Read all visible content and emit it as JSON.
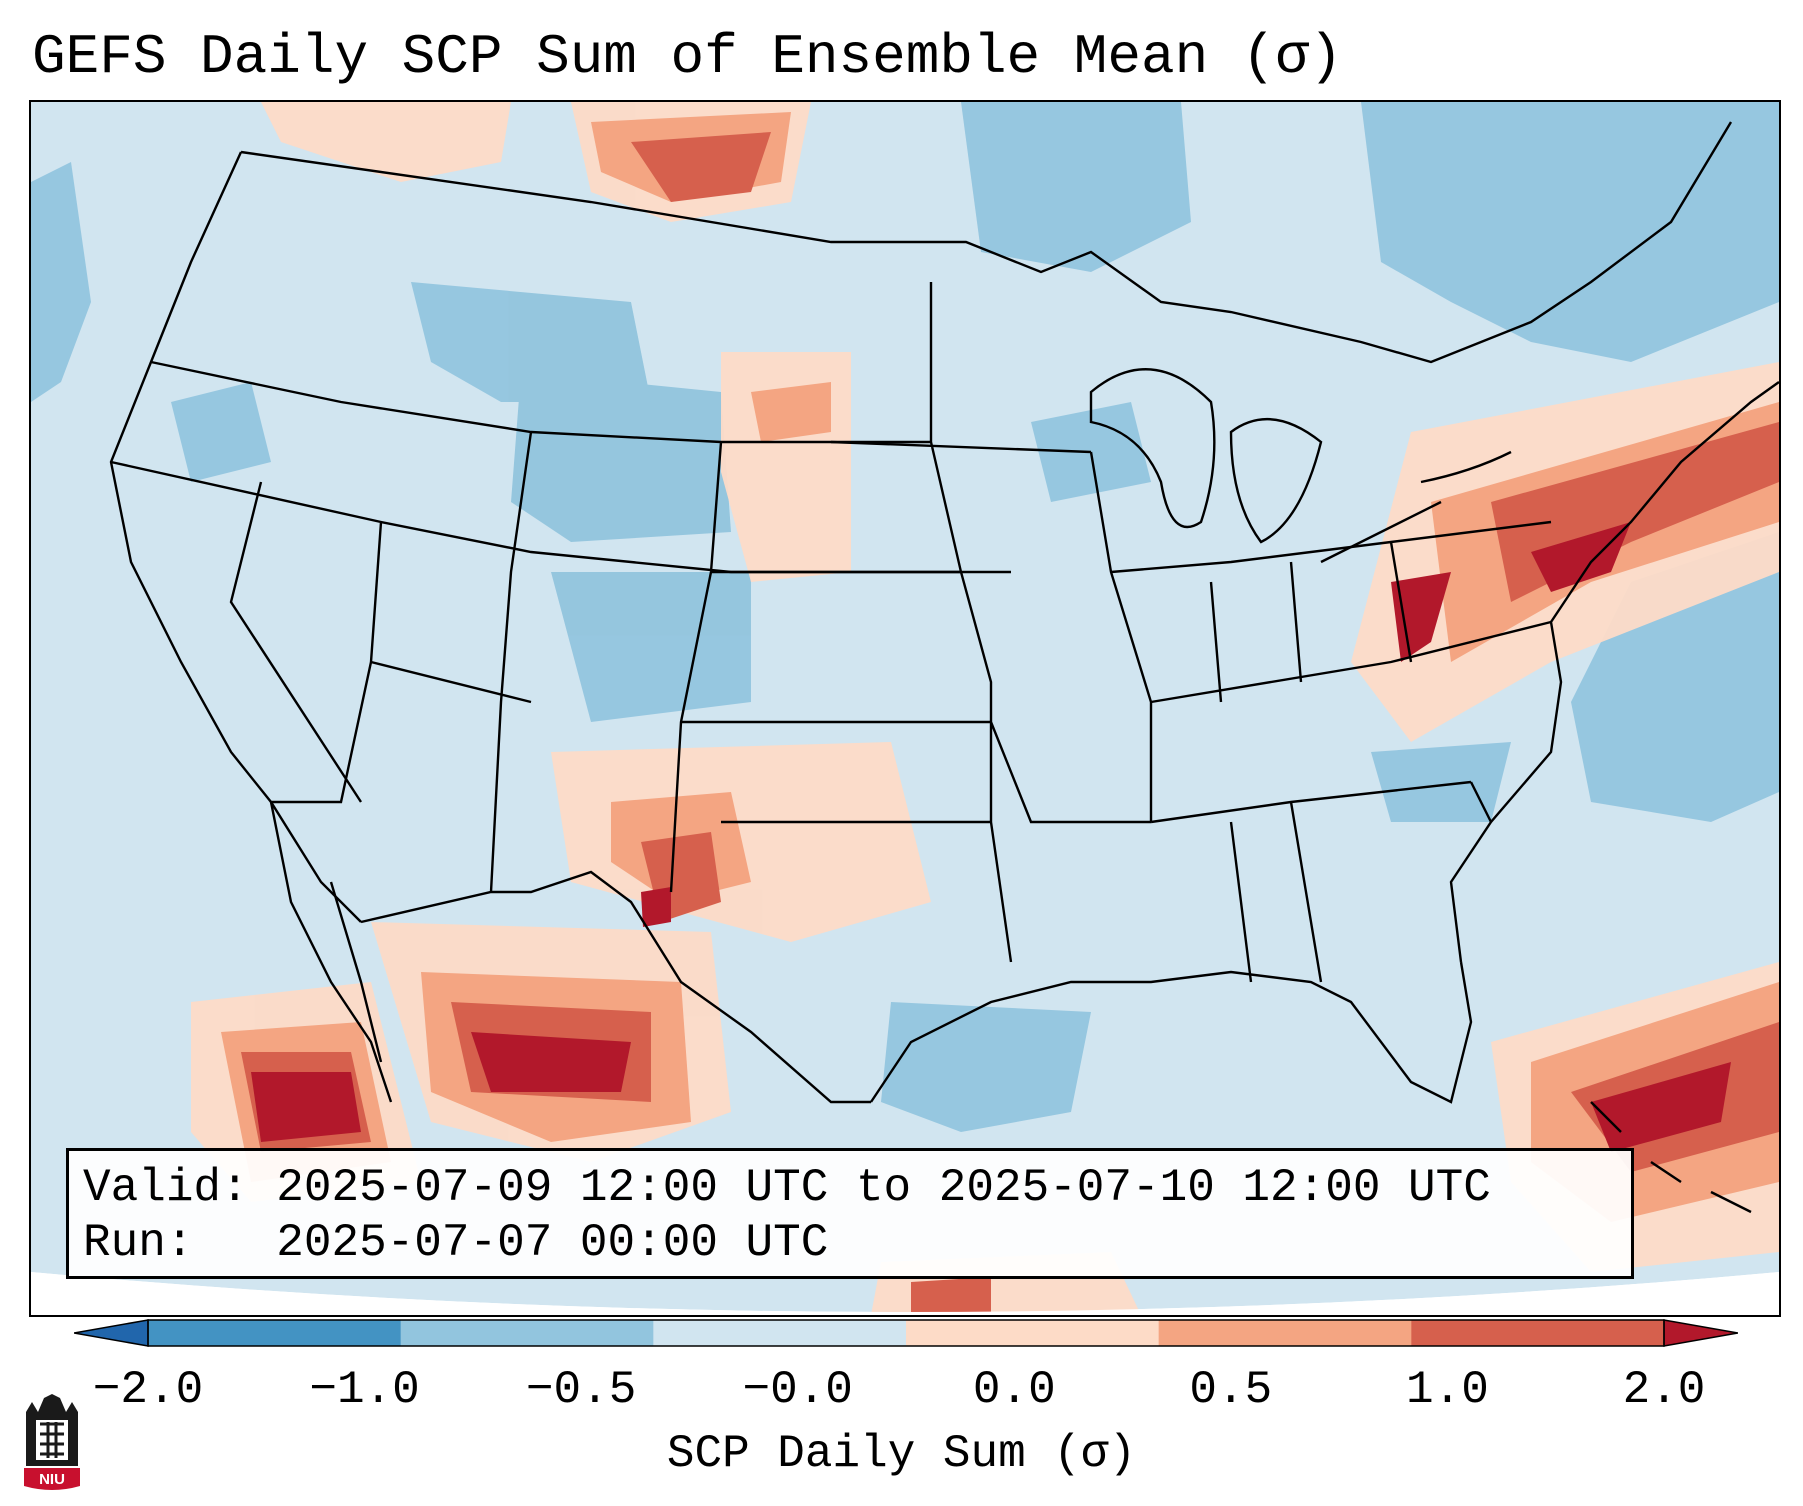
{
  "title": "GEFS Daily SCP Sum of Ensemble Mean (σ)",
  "info": {
    "valid_label": "Valid:",
    "valid_value": "2025-07-09 12:00 UTC to 2025-07-10 12:00 UTC",
    "run_label": "Run:",
    "run_value": "2025-07-07 00:00 UTC"
  },
  "colorbar": {
    "label": "SCP Daily Sum (σ)",
    "ticks": [
      "−2.0",
      "−1.0",
      "−0.5",
      "−0.0",
      "0.0",
      "0.5",
      "1.0",
      "2.0"
    ],
    "colors": [
      "#2166ac",
      "#4393c3",
      "#92c5de",
      "#d1e5f0",
      "#fddbc7",
      "#f4a582",
      "#d6604d",
      "#b2182b"
    ],
    "extend": "both"
  },
  "logo": {
    "text": "NIU",
    "icon": "niu-castle-logo-icon"
  },
  "map": {
    "projection": "lambert-conformal",
    "region": "Contiguous United States, northern Mexico, Caribbean",
    "highlight_regions": [
      {
        "name": "Northeast / Mid-Atlantic",
        "max_sigma": 2.0
      },
      {
        "name": "New Mexico / Southern Plains",
        "max_sigma": 2.0
      },
      {
        "name": "Northern Mexico",
        "max_sigma": 2.0
      },
      {
        "name": "Baja California / Gulf of California",
        "max_sigma": 2.0
      },
      {
        "name": "Western Atlantic near Bahamas",
        "max_sigma": 2.0
      },
      {
        "name": "Montana / Saskatchewan border",
        "max_sigma": 1.0
      },
      {
        "name": "South Dakota / Nebraska",
        "max_sigma": 1.0
      }
    ]
  }
}
